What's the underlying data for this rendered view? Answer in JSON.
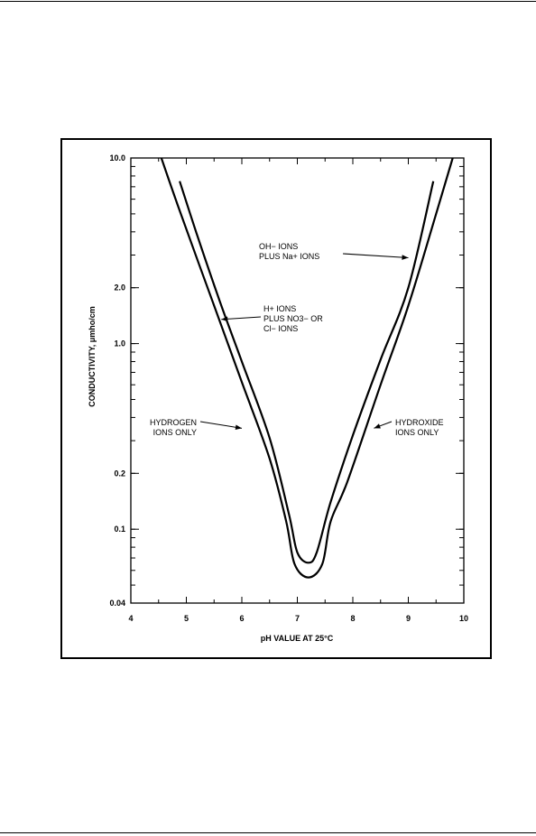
{
  "chart_data": {
    "type": "line",
    "xlabel": "pH VALUE AT 25°C",
    "ylabel": "CONDUCTIVITY, μmho/cm",
    "x_ticks": [
      4,
      5,
      6,
      7,
      8,
      9,
      10
    ],
    "x_tick_labels": [
      "4",
      "5",
      "6",
      "7",
      "8",
      "9",
      "10"
    ],
    "y_scale": "log",
    "y_ticks": [
      10.0,
      2.0,
      1.0,
      0.2,
      0.1,
      0.04
    ],
    "y_tick_labels": [
      "10.0",
      "2.0",
      "1.0",
      "0.2",
      "0.1",
      "0.04"
    ],
    "xlim": [
      4,
      10
    ],
    "ylim": [
      0.04,
      10.0
    ],
    "grid": false,
    "series": [
      {
        "x": [
          4.55,
          4.9,
          5.5,
          6.0,
          6.5,
          6.8,
          6.95,
          7.2,
          7.45,
          7.6,
          7.9,
          8.5,
          9.0,
          9.5,
          9.8
        ],
        "y": [
          10.0,
          5.0,
          1.6,
          0.62,
          0.24,
          0.11,
          0.065,
          0.055,
          0.065,
          0.11,
          0.18,
          0.6,
          1.6,
          5.0,
          10.0
        ]
      },
      {
        "x": [
          4.88,
          5.2,
          5.6,
          6.0,
          6.5,
          6.85,
          7.0,
          7.2,
          7.35,
          7.6,
          8.0,
          8.5,
          9.0,
          9.45
        ],
        "y": [
          7.5,
          3.8,
          1.7,
          0.8,
          0.31,
          0.12,
          0.075,
          0.066,
          0.075,
          0.14,
          0.32,
          0.82,
          2.0,
          7.5
        ]
      }
    ],
    "annotations": [
      {
        "id": "oh",
        "lines": [
          "OH− IONS",
          "PLUS Na+ IONS"
        ],
        "x": 9.0,
        "y": 2.9
      },
      {
        "id": "h",
        "lines": [
          "H+ IONS",
          "PLUS NO3− OR",
          "Cl− IONS"
        ],
        "x": 5.63,
        "y": 1.35
      },
      {
        "id": "hydrogen",
        "lines": [
          "HYDROGEN",
          "IONS ONLY"
        ],
        "x": 6.0,
        "y": 0.35
      },
      {
        "id": "hydroxide",
        "lines": [
          "HYDROXIDE",
          "IONS ONLY"
        ],
        "x": 8.38,
        "y": 0.35
      }
    ]
  }
}
